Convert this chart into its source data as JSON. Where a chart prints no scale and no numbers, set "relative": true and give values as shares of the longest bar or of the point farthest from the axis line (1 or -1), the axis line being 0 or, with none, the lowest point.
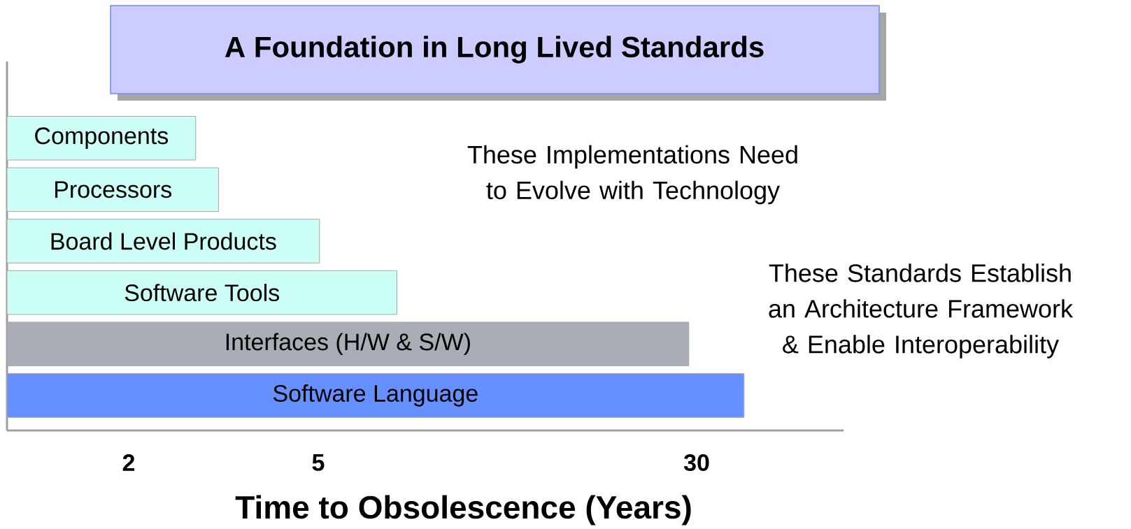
{
  "chart_data": {
    "type": "bar",
    "orientation": "horizontal",
    "relative": true,
    "title": "A Foundation in Long Lived Standards",
    "xlabel": "Time to Obsolescence (Years)",
    "categories": [
      "Components",
      "Processors",
      "Board Level Products",
      "Software Tools",
      "Interfaces (H/W & S/W)",
      "Software Language"
    ],
    "values": [
      0.256,
      0.287,
      0.424,
      0.529,
      0.925,
      1
    ],
    "colors": [
      "#ccfff5",
      "#ccfff5",
      "#ccfff5",
      "#ccfff5",
      "#a9aeb6",
      "#6690ff"
    ],
    "annotations": [
      "These Implementations Need to Evolve with Technology",
      "These Standards Establish an Architecture Framework & Enable Interoperability",
      "2",
      "5",
      "30"
    ]
  }
}
